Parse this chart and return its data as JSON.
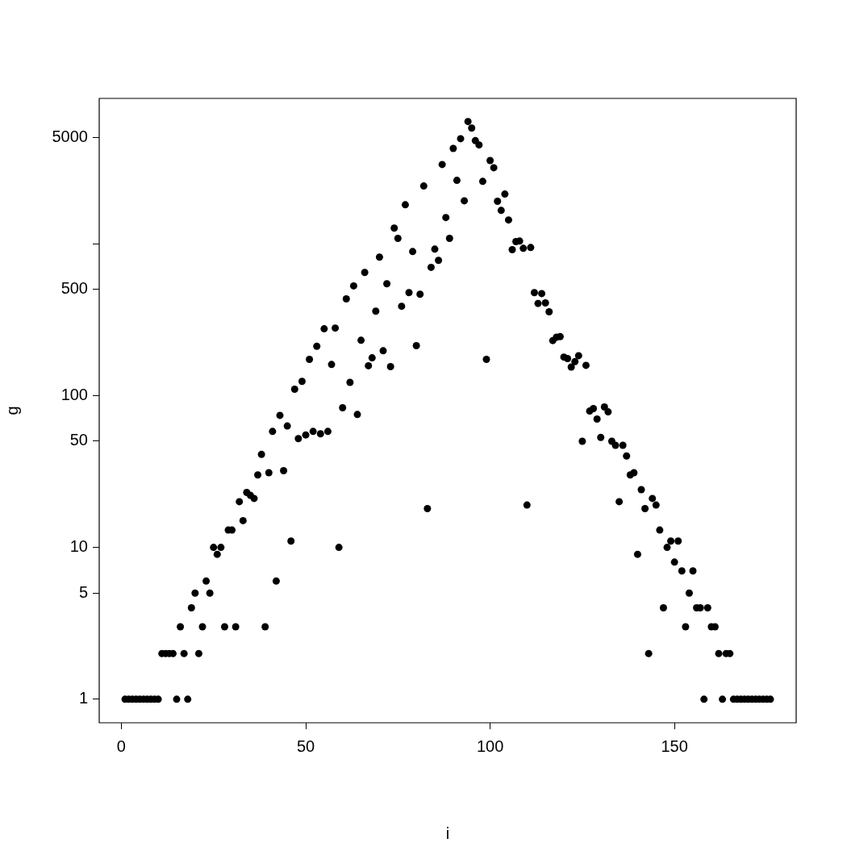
{
  "chart_data": {
    "type": "scatter",
    "xlabel": "i",
    "ylabel": "g",
    "log": "y",
    "grid": false,
    "marker": "circle",
    "color": "#000000",
    "x": [
      1,
      2,
      3,
      4,
      5,
      6,
      7,
      8,
      9,
      10,
      11,
      12,
      13,
      14,
      15,
      16,
      17,
      18,
      19,
      20,
      21,
      22,
      23,
      24,
      25,
      26,
      27,
      28,
      29,
      30,
      31,
      32,
      33,
      34,
      35,
      36,
      37,
      38,
      39,
      40,
      41,
      42,
      43,
      44,
      45,
      46,
      47,
      48,
      49,
      50,
      51,
      52,
      53,
      54,
      55,
      56,
      57,
      58,
      59,
      60,
      61,
      62,
      63,
      64,
      65,
      66,
      67,
      68,
      69,
      70,
      71,
      72,
      73,
      74,
      75,
      76,
      77,
      78,
      79,
      80,
      81,
      82,
      83,
      84,
      85,
      86,
      87,
      88,
      89,
      90,
      91,
      92,
      93,
      94,
      95,
      96,
      97,
      98,
      99,
      100,
      101,
      102,
      103,
      104,
      105,
      106,
      107,
      108,
      109,
      110,
      111,
      112,
      113,
      114,
      115,
      116,
      117,
      118,
      119,
      120,
      121,
      122,
      123,
      124,
      125,
      126,
      127,
      128,
      129,
      130,
      131,
      132,
      133,
      134,
      135,
      136,
      137,
      138,
      139,
      140,
      141,
      142,
      143,
      144,
      145,
      146,
      147,
      148,
      149,
      150,
      151,
      152,
      153,
      154,
      155,
      156,
      157,
      158,
      159,
      160,
      161,
      162,
      163,
      164,
      165,
      166,
      167,
      168,
      169,
      170,
      171,
      172,
      173,
      174,
      175,
      176
    ],
    "values": [
      1,
      1,
      1,
      1,
      1,
      1,
      1,
      1,
      1,
      1,
      2,
      2,
      2,
      2,
      1,
      3,
      2,
      1,
      4,
      5,
      2,
      3,
      6,
      5,
      10,
      9,
      10,
      3,
      13,
      13,
      3,
      20,
      15,
      23,
      22,
      21,
      30,
      41,
      3,
      31,
      58,
      6,
      74,
      32,
      63,
      11,
      110,
      52,
      124,
      55,
      173,
      58,
      211,
      56,
      275,
      58,
      160,
      278,
      10,
      83,
      433,
      122,
      527,
      75,
      231,
      646,
      157,
      177,
      359,
      815,
      197,
      544,
      155,
      1265,
      1083,
      387,
      1803,
      476,
      887,
      213,
      464,
      2395,
      18,
      698,
      920,
      776,
      3320,
      1486,
      1083,
      4237,
      2609,
      4910,
      1915,
      6368,
      5770,
      4765,
      4467,
      2570,
      173,
      3525,
      3160,
      1900,
      1655,
      2120,
      1432,
      912,
      1031,
      1040,
      931,
      19,
      943,
      476,
      404,
      469,
      407,
      356,
      230,
      242,
      244,
      179,
      175,
      154,
      167,
      183,
      50,
      158,
      79,
      82,
      70,
      53,
      84,
      78,
      50,
      47,
      20,
      47,
      40,
      30,
      31,
      9,
      24,
      18,
      2,
      21,
      19,
      13,
      4,
      10,
      11,
      8,
      11,
      7,
      3,
      5,
      7,
      4,
      4,
      1,
      4,
      3,
      3,
      2,
      1,
      2,
      2,
      1,
      1,
      1,
      1,
      1,
      1,
      1,
      1,
      1,
      1,
      1
    ],
    "xlim": [
      -6,
      183
    ],
    "xticks": [
      0,
      50,
      100,
      150
    ],
    "ylim": [
      0.705,
      9040
    ],
    "yticks": [
      1,
      5,
      10,
      50,
      100,
      500,
      {
        "value": 1000,
        "label": null
      },
      5000
    ]
  }
}
